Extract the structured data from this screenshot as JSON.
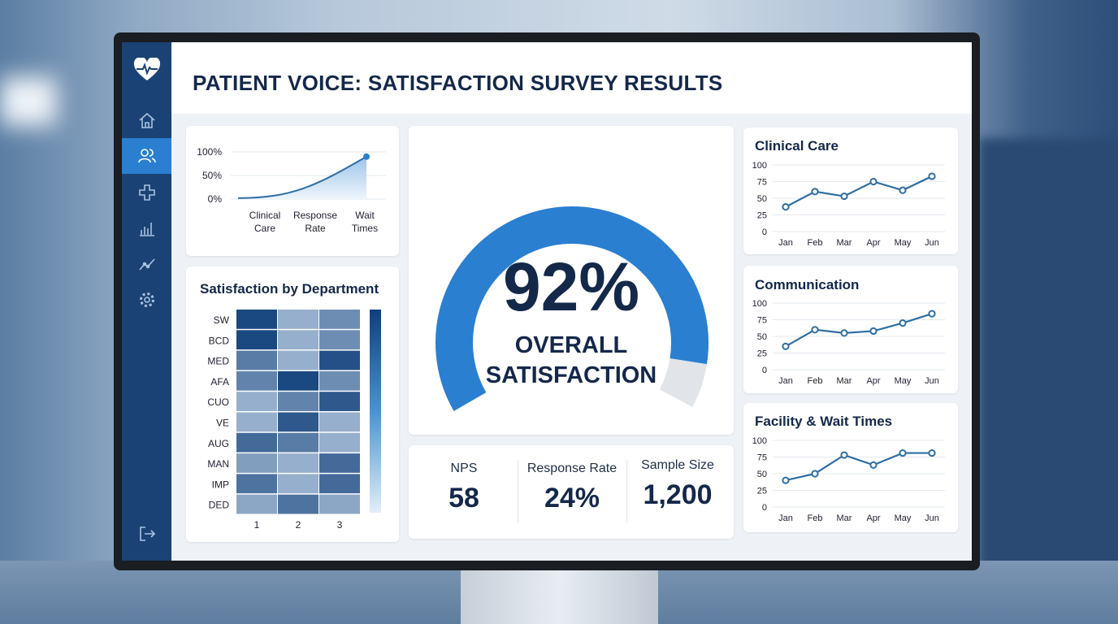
{
  "title": "PATIENT VOICE: SATISFACTION SURVEY RESULTS",
  "sidebar": {
    "items": [
      {
        "icon": "home-icon"
      },
      {
        "icon": "users-icon",
        "active": true
      },
      {
        "icon": "medical-cross-icon"
      },
      {
        "icon": "bar-chart-icon"
      },
      {
        "icon": "trend-icon"
      },
      {
        "icon": "gear-icon"
      }
    ],
    "logout_icon": "logout-icon",
    "logo_icon": "heart-pulse-icon"
  },
  "colors": {
    "accent": "#2a7fd0",
    "navy": "#1b4274",
    "line": "#2f6fa3"
  },
  "summary_chart": {
    "type": "area",
    "y_ticks": [
      "100%",
      "50%",
      "0%"
    ],
    "categories": [
      "Clinical Care",
      "Response Rate",
      "Wait Times"
    ],
    "values": [
      2,
      28,
      90
    ],
    "ylim": [
      0,
      100
    ]
  },
  "heatmap": {
    "title": "Satisfaction by Department",
    "rows": [
      "SW",
      "BCD",
      "MED",
      "AFA",
      "CUO",
      "VE",
      "AUG",
      "MAN",
      "IMP",
      "DED"
    ],
    "cols": [
      "1",
      "2",
      "3"
    ],
    "values": [
      [
        95,
        35,
        55
      ],
      [
        95,
        35,
        55
      ],
      [
        65,
        35,
        90
      ],
      [
        60,
        95,
        55
      ],
      [
        35,
        60,
        85
      ],
      [
        35,
        85,
        35
      ],
      [
        75,
        65,
        35
      ],
      [
        45,
        35,
        75
      ],
      [
        70,
        35,
        75
      ],
      [
        40,
        70,
        40
      ]
    ]
  },
  "gauge": {
    "value": 92,
    "value_label": "92%",
    "line1": "OVERALL",
    "line2": "SATISFACTION"
  },
  "stats": [
    {
      "label": "NPS",
      "value": "58"
    },
    {
      "label": "Response Rate",
      "value": "24%"
    },
    {
      "label": "Sample Size",
      "value": "1,200"
    }
  ],
  "chart_data": [
    {
      "type": "line",
      "title": "Clinical Care",
      "categories": [
        "Jan",
        "Feb",
        "Mar",
        "Apr",
        "May",
        "Jun"
      ],
      "values": [
        37,
        60,
        53,
        75,
        62,
        83
      ],
      "ylim": [
        0,
        100
      ],
      "y_ticks": [
        "100",
        "75",
        "50",
        "25",
        "0"
      ]
    },
    {
      "type": "line",
      "title": "Communication",
      "categories": [
        "Jan",
        "Feb",
        "Mar",
        "Apr",
        "May",
        "Jun"
      ],
      "values": [
        35,
        60,
        55,
        58,
        70,
        84
      ],
      "ylim": [
        0,
        100
      ],
      "y_ticks": [
        "100",
        "75",
        "50",
        "25",
        "0"
      ]
    },
    {
      "type": "line",
      "title": "Facility & Wait Times",
      "categories": [
        "Jan",
        "Feb",
        "Mar",
        "Apr",
        "May",
        "Jun"
      ],
      "values": [
        40,
        50,
        78,
        63,
        81,
        81
      ],
      "ylim": [
        0,
        100
      ],
      "y_ticks": [
        "100",
        "75",
        "50",
        "25",
        "0"
      ]
    }
  ]
}
